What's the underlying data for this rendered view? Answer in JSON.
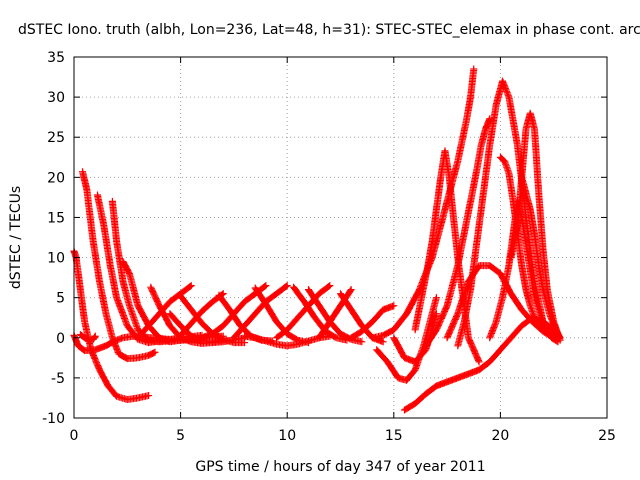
{
  "chart_data": {
    "type": "scatter",
    "title": "dSTEC Iono. truth (albh, Lon=236, Lat=48, h=31): STEC-STEC_elemax in phase cont. arc",
    "xlabel": "GPS time / hours of day 347 of year 2011",
    "ylabel": "dSTEC  / TECUs",
    "xlim": [
      0,
      25
    ],
    "ylim": [
      -10,
      35
    ],
    "xticks": [
      0,
      5,
      10,
      15,
      20,
      25
    ],
    "yticks": [
      -10,
      -5,
      0,
      5,
      10,
      15,
      20,
      25,
      30,
      35
    ],
    "grid": true,
    "marker": "plus",
    "color": "#ff0000",
    "series": [
      {
        "x": [
          0.0,
          0.1,
          0.3,
          0.5,
          0.8,
          1.2,
          1.6,
          2.0,
          2.5,
          3.0,
          3.5
        ],
        "y": [
          10.8,
          10.0,
          6.0,
          2.0,
          -1.5,
          -4.0,
          -6.0,
          -7.3,
          -7.7,
          -7.5,
          -7.2
        ]
      },
      {
        "x": [
          0.0,
          0.2,
          0.5,
          1.0,
          1.5,
          1.9,
          2.3,
          2.8,
          3.3,
          4.0,
          5.0,
          6.0
        ],
        "y": [
          0.3,
          -1.0,
          -1.6,
          -1.5,
          -1.0,
          -0.4,
          0.0,
          0.2,
          0.1,
          -0.1,
          -0.3,
          -0.2
        ]
      },
      {
        "x": [
          0.4,
          0.6,
          0.9,
          1.2,
          1.5,
          1.8,
          2.1,
          2.5,
          3.0,
          3.5,
          3.8
        ],
        "y": [
          20.7,
          18.5,
          12.0,
          7.0,
          3.0,
          0.0,
          -2.0,
          -2.6,
          -2.5,
          -2.2,
          -1.8
        ]
      },
      {
        "x": [
          0.3,
          0.5,
          0.7,
          0.9,
          1.0
        ],
        "y": [
          0.4,
          0.0,
          -0.3,
          -0.2,
          0.2
        ]
      },
      {
        "x": [
          1.1,
          1.4,
          1.7,
          2.0,
          2.5,
          3.0,
          3.5,
          4.0,
          5.0,
          6.0
        ],
        "y": [
          17.8,
          14.0,
          9.0,
          5.0,
          1.5,
          -0.2,
          -0.6,
          -0.4,
          0.0,
          0.3
        ]
      },
      {
        "x": [
          1.8,
          2.0,
          2.3,
          2.6,
          3.0,
          3.5,
          4.0,
          5.0,
          6.0,
          7.0
        ],
        "y": [
          17.0,
          12.0,
          7.0,
          4.0,
          1.0,
          -0.3,
          -0.5,
          -0.3,
          0.0,
          0.2
        ]
      },
      {
        "x": [
          2.3,
          2.6,
          3.0,
          3.5,
          4.0,
          4.5,
          5.0
        ],
        "y": [
          9.5,
          8.0,
          4.0,
          1.5,
          0.0,
          -0.5,
          -0.3
        ]
      },
      {
        "x": [
          3.6,
          4.0,
          4.5,
          5.0,
          5.5,
          6.0,
          7.0,
          8.0
        ],
        "y": [
          6.3,
          4.0,
          1.5,
          0.0,
          -0.5,
          -0.7,
          -0.5,
          0.0
        ]
      },
      {
        "x": [
          3.0,
          3.5,
          4.0,
          4.5,
          5.0,
          5.5
        ],
        "y": [
          0.0,
          1.5,
          3.0,
          4.5,
          5.5,
          6.5
        ]
      },
      {
        "x": [
          5.0,
          5.5,
          6.0,
          6.5,
          7.0,
          7.5,
          8.0
        ],
        "y": [
          5.2,
          3.5,
          1.8,
          0.5,
          -0.2,
          -0.6,
          -0.6
        ]
      },
      {
        "x": [
          4.5,
          5.0,
          5.5,
          6.0,
          6.5,
          7.0
        ],
        "y": [
          3.0,
          1.5,
          0.2,
          -0.4,
          -0.5,
          -0.3
        ]
      },
      {
        "x": [
          5.0,
          5.5,
          6.0,
          6.5,
          7.0
        ],
        "y": [
          0.3,
          1.8,
          3.3,
          4.5,
          5.5
        ]
      },
      {
        "x": [
          6.0,
          6.5,
          7.0,
          7.5,
          8.0,
          8.5,
          9.0
        ],
        "y": [
          0.0,
          0.5,
          1.5,
          3.0,
          4.5,
          5.5,
          6.5
        ]
      },
      {
        "x": [
          7.5,
          8.0,
          8.5,
          9.0,
          9.5,
          10.0
        ],
        "y": [
          0.0,
          1.5,
          3.0,
          4.5,
          5.5,
          6.5
        ]
      },
      {
        "x": [
          6.8,
          7.3,
          7.8,
          8.3,
          8.8,
          9.3
        ],
        "y": [
          5.3,
          3.5,
          1.5,
          0.2,
          -0.3,
          -0.4
        ]
      },
      {
        "x": [
          8.5,
          9.0,
          9.5,
          10.0,
          10.5,
          11.0
        ],
        "y": [
          6.2,
          4.2,
          2.0,
          0.5,
          -0.3,
          -0.6
        ]
      },
      {
        "x": [
          8.0,
          8.5,
          9.0,
          9.5,
          10.0,
          10.5,
          11.0,
          11.5,
          12.0
        ],
        "y": [
          0.2,
          0.0,
          -0.4,
          -0.8,
          -1.0,
          -0.8,
          -0.4,
          0.0,
          0.2
        ]
      },
      {
        "x": [
          9.5,
          10.0,
          10.5,
          11.0,
          11.5,
          12.0
        ],
        "y": [
          0.0,
          1.0,
          2.5,
          4.0,
          5.5,
          6.5
        ]
      },
      {
        "x": [
          11.0,
          11.5,
          12.0,
          12.5,
          13.0,
          13.5
        ],
        "y": [
          6.0,
          4.0,
          2.0,
          0.5,
          -0.2,
          -0.5
        ]
      },
      {
        "x": [
          10.3,
          10.8,
          11.3,
          11.8,
          12.3,
          12.8
        ],
        "y": [
          6.3,
          4.5,
          2.5,
          0.8,
          0.0,
          -0.3
        ]
      },
      {
        "x": [
          11.5,
          12.0,
          12.5,
          13.0
        ],
        "y": [
          0.0,
          2.0,
          4.0,
          6.0
        ]
      },
      {
        "x": [
          12.5,
          13.0,
          13.5,
          14.0,
          14.5
        ],
        "y": [
          5.5,
          3.5,
          1.5,
          0.0,
          -0.5
        ]
      },
      {
        "x": [
          13.0,
          13.5,
          14.0,
          14.5,
          15.0
        ],
        "y": [
          0.0,
          0.8,
          2.0,
          3.5,
          4.0
        ]
      },
      {
        "x": [
          14.0,
          14.5,
          15.0,
          15.3,
          15.6,
          15.9,
          16.2,
          16.5,
          16.8,
          17.0,
          17.2,
          17.4,
          17.6,
          17.8,
          18.0,
          18.2,
          18.4,
          18.6,
          18.75
        ],
        "y": [
          0.0,
          0.3,
          1.0,
          2.0,
          3.0,
          4.5,
          6.0,
          8.0,
          10.0,
          12.0,
          14.0,
          16.0,
          18.0,
          20.0,
          22.0,
          24.5,
          27.0,
          30.0,
          33.5
        ]
      },
      {
        "x": [
          14.2,
          14.7,
          15.2,
          15.6,
          16.0,
          16.4,
          16.7,
          17.0
        ],
        "y": [
          -1.5,
          -3.0,
          -5.0,
          -5.3,
          -4.0,
          -1.0,
          2.0,
          5.0
        ]
      },
      {
        "x": [
          15.0,
          15.5,
          16.0,
          16.5,
          16.8,
          17.0
        ],
        "y": [
          0.0,
          -2.5,
          -3.0,
          -1.5,
          1.0,
          3.0
        ]
      },
      {
        "x": [
          15.5,
          16.0,
          16.5,
          17.0,
          17.5,
          18.0,
          18.5,
          19.0,
          19.5,
          20.0,
          20.5,
          21.0,
          21.5,
          22.0,
          22.5,
          22.7
        ],
        "y": [
          -9.0,
          -8.2,
          -7.0,
          -6.0,
          -5.5,
          -5.0,
          -4.5,
          -4.0,
          -3.0,
          -1.5,
          0.0,
          1.5,
          2.5,
          2.0,
          1.0,
          0.0
        ]
      },
      {
        "x": [
          16.0,
          16.3,
          16.6,
          16.8,
          17.0,
          17.2,
          17.4,
          17.6,
          18.0,
          18.5,
          19.0
        ],
        "y": [
          1.0,
          5.0,
          9.0,
          12.0,
          16.0,
          20.0,
          23.3,
          20.0,
          10.0,
          0.0,
          -3.0
        ]
      },
      {
        "x": [
          16.5,
          17.0,
          17.5,
          18.0,
          18.3,
          18.6,
          18.9,
          19.1,
          19.3,
          19.5
        ],
        "y": [
          -1.0,
          1.0,
          4.0,
          9.0,
          13.0,
          17.0,
          21.0,
          24.0,
          26.0,
          27.3
        ]
      },
      {
        "x": [
          17.5,
          18.0,
          18.5,
          19.0,
          19.5,
          20.0,
          20.5,
          21.0,
          21.5,
          22.0,
          22.5
        ],
        "y": [
          0.0,
          3.0,
          7.0,
          9.0,
          9.0,
          8.0,
          5.5,
          3.5,
          2.0,
          0.8,
          0.0
        ]
      },
      {
        "x": [
          18.0,
          18.3,
          18.6,
          18.9,
          19.2,
          19.5,
          19.8,
          20.1,
          20.4,
          20.8,
          21.2,
          21.6,
          22.0,
          22.4,
          22.7
        ],
        "y": [
          -1.0,
          2.0,
          6.0,
          12.0,
          18.0,
          24.0,
          29.0,
          32.0,
          30.0,
          24.0,
          15.0,
          7.0,
          2.0,
          0.0,
          -0.5
        ]
      },
      {
        "x": [
          19.5,
          19.8,
          20.1,
          20.4,
          20.6,
          20.8,
          21.0,
          21.3,
          21.6,
          22.0,
          22.5
        ],
        "y": [
          0.0,
          2.0,
          5.0,
          9.0,
          13.0,
          17.0,
          15.0,
          10.0,
          5.0,
          2.0,
          0.0
        ]
      },
      {
        "x": [
          20.0,
          20.2,
          20.4,
          20.6,
          20.8,
          21.0,
          21.2,
          21.4,
          21.6,
          21.8,
          22.0,
          22.3,
          22.6
        ],
        "y": [
          22.5,
          22.0,
          20.5,
          17.0,
          13.0,
          9.0,
          6.0,
          4.0,
          2.5,
          1.5,
          1.0,
          0.3,
          0.0
        ]
      },
      {
        "x": [
          20.5,
          20.8,
          21.0,
          21.2,
          21.4,
          21.6,
          21.8,
          22.0,
          22.2,
          22.5,
          22.8
        ],
        "y": [
          10.0,
          14.0,
          20.0,
          26.0,
          28.0,
          26.0,
          18.0,
          11.0,
          6.0,
          2.0,
          -0.3
        ]
      },
      {
        "x": [
          21.0,
          21.2,
          21.4,
          21.6,
          21.8,
          22.0,
          22.3,
          22.6,
          22.8
        ],
        "y": [
          20.0,
          18.0,
          16.0,
          13.0,
          9.0,
          6.0,
          3.0,
          1.0,
          0.0
        ]
      }
    ]
  }
}
